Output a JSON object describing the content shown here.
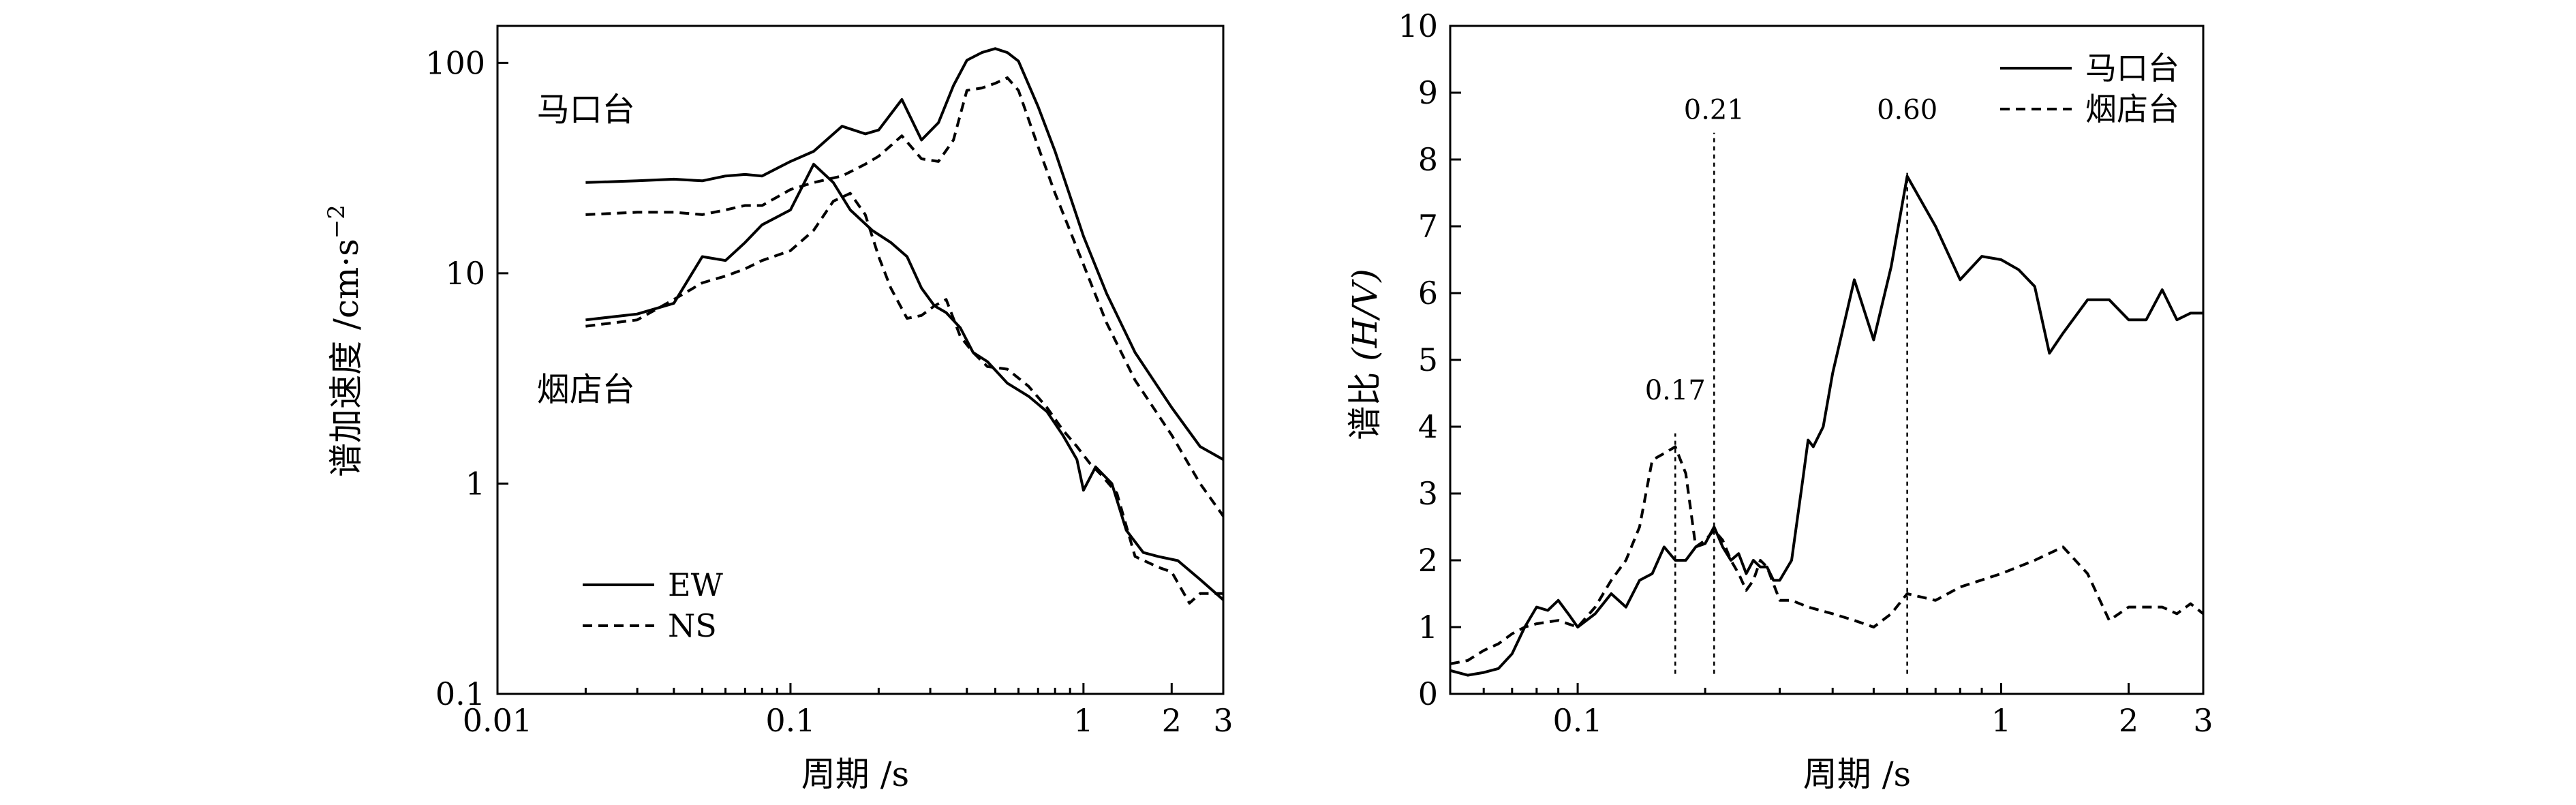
{
  "chart_data": [
    {
      "type": "line",
      "xscale": "log",
      "yscale": "log",
      "xlim": [
        0.01,
        3
      ],
      "ylim": [
        0.1,
        150
      ],
      "xlabel": "周期 /s",
      "ylabel_main": "谱加速度 /cm·s",
      "ylabel_sup": "−2",
      "xticks": [
        0.01,
        0.1,
        1,
        2,
        3
      ],
      "xtick_labels": [
        "0.01",
        "0.1",
        "1",
        "2",
        "3"
      ],
      "yticks": [
        0.1,
        1,
        10,
        100
      ],
      "ytick_labels": [
        "0.1",
        "1",
        "10",
        "100"
      ],
      "station_labels": [
        {
          "text": "马口台",
          "x": 0.011,
          "y": 60
        },
        {
          "text": "烟店台",
          "x": 0.011,
          "y": 2.8
        }
      ],
      "legend": [
        {
          "label": "EW",
          "style": "solid"
        },
        {
          "label": "NS",
          "style": "dashed"
        }
      ],
      "series": [
        {
          "name": "马口台 EW",
          "component": "EW",
          "x": [
            0.02,
            0.03,
            0.04,
            0.05,
            0.06,
            0.07,
            0.08,
            0.1,
            0.12,
            0.15,
            0.18,
            0.2,
            0.24,
            0.28,
            0.32,
            0.36,
            0.4,
            0.45,
            0.5,
            0.55,
            0.6,
            0.7,
            0.8,
            1.0,
            1.2,
            1.5,
            2.0,
            2.5,
            3.0
          ],
          "y": [
            27,
            27.5,
            28,
            27.5,
            29,
            29.5,
            29,
            34,
            38,
            50,
            46,
            48,
            67,
            43,
            52,
            78,
            103,
            112,
            117,
            112,
            102,
            62,
            38,
            15,
            8,
            4.2,
            2.3,
            1.5,
            1.3
          ]
        },
        {
          "name": "马口台 NS",
          "component": "NS",
          "x": [
            0.02,
            0.03,
            0.04,
            0.05,
            0.06,
            0.07,
            0.08,
            0.1,
            0.12,
            0.15,
            0.18,
            0.2,
            0.24,
            0.28,
            0.32,
            0.36,
            0.4,
            0.45,
            0.5,
            0.55,
            0.6,
            0.7,
            0.8,
            1.0,
            1.2,
            1.5,
            2.0,
            2.5,
            3.0
          ],
          "y": [
            19,
            19.5,
            19.5,
            19,
            20,
            21,
            21,
            25,
            27,
            29,
            33,
            36,
            45,
            35,
            34,
            43,
            74,
            76,
            80,
            85,
            74,
            40,
            24,
            11,
            5.8,
            3.1,
            1.7,
            1.0,
            0.7
          ]
        },
        {
          "name": "烟店台 EW",
          "component": "EW",
          "x": [
            0.02,
            0.03,
            0.04,
            0.05,
            0.06,
            0.07,
            0.08,
            0.1,
            0.12,
            0.14,
            0.16,
            0.19,
            0.22,
            0.25,
            0.28,
            0.31,
            0.34,
            0.38,
            0.42,
            0.47,
            0.55,
            0.65,
            0.75,
            0.85,
            0.95,
            1.0,
            1.1,
            1.25,
            1.4,
            1.6,
            1.8,
            2.1,
            2.5,
            3.0
          ],
          "y": [
            6,
            6.4,
            7.2,
            12,
            11.5,
            14,
            17,
            20,
            33,
            27,
            20,
            16,
            14,
            12,
            8.5,
            7,
            6.5,
            5.5,
            4.2,
            3.8,
            3.0,
            2.6,
            2.2,
            1.7,
            1.3,
            0.93,
            1.2,
            1.0,
            0.6,
            0.47,
            0.45,
            0.43,
            0.35,
            0.28
          ]
        },
        {
          "name": "烟店台 NS",
          "component": "NS",
          "x": [
            0.02,
            0.03,
            0.04,
            0.05,
            0.06,
            0.07,
            0.08,
            0.1,
            0.12,
            0.14,
            0.16,
            0.18,
            0.2,
            0.22,
            0.25,
            0.28,
            0.31,
            0.34,
            0.38,
            0.42,
            0.47,
            0.55,
            0.65,
            0.75,
            0.85,
            0.95,
            1.05,
            1.15,
            1.3,
            1.5,
            1.8,
            2.0,
            2.3,
            2.5,
            3.0
          ],
          "y": [
            5.6,
            6.0,
            7.5,
            9.0,
            9.7,
            10.5,
            11.5,
            12.8,
            16,
            22,
            24,
            19,
            12,
            8.5,
            6.1,
            6.3,
            7.0,
            7.5,
            5.0,
            4.2,
            3.6,
            3.5,
            2.9,
            2.3,
            1.8,
            1.5,
            1.25,
            1.1,
            0.9,
            0.45,
            0.4,
            0.38,
            0.27,
            0.3,
            0.3
          ]
        }
      ]
    },
    {
      "type": "line",
      "xscale": "log",
      "yscale": "linear",
      "xlim": [
        0.05,
        3
      ],
      "ylim": [
        0,
        10
      ],
      "xlabel": "周期 /s",
      "ylabel_main": "谱比 ",
      "ylabel_italic": "(H/V)",
      "xticks": [
        0.1,
        1,
        2,
        3
      ],
      "xtick_labels": [
        "0.1",
        "1",
        "2",
        "3"
      ],
      "yticks": [
        0,
        1,
        2,
        3,
        4,
        5,
        6,
        7,
        8,
        9,
        10
      ],
      "ytick_labels": [
        "0",
        "1",
        "2",
        "3",
        "4",
        "5",
        "6",
        "7",
        "8",
        "9",
        "10"
      ],
      "legend": [
        {
          "label": "马口台",
          "style": "solid"
        },
        {
          "label": "烟店台",
          "style": "dashed"
        }
      ],
      "markers": [
        {
          "x": 0.17,
          "label": "0.17",
          "y_top": 3.9,
          "label_y": 4.55
        },
        {
          "x": 0.21,
          "label": "0.21",
          "y_top": 8.4,
          "label_y": 8.75
        },
        {
          "x": 0.6,
          "label": "0.60",
          "y_top": 7.8,
          "label_y": 8.75
        }
      ],
      "series": [
        {
          "name": "马口台",
          "x": [
            0.05,
            0.055,
            0.06,
            0.065,
            0.07,
            0.075,
            0.08,
            0.085,
            0.09,
            0.095,
            0.1,
            0.11,
            0.12,
            0.13,
            0.14,
            0.15,
            0.16,
            0.17,
            0.18,
            0.19,
            0.2,
            0.21,
            0.22,
            0.23,
            0.24,
            0.25,
            0.26,
            0.27,
            0.28,
            0.29,
            0.3,
            0.32,
            0.34,
            0.35,
            0.36,
            0.38,
            0.4,
            0.45,
            0.5,
            0.55,
            0.6,
            0.7,
            0.8,
            0.9,
            1.0,
            1.1,
            1.2,
            1.3,
            1.4,
            1.6,
            1.8,
            2.0,
            2.2,
            2.4,
            2.6,
            2.8,
            3.0
          ],
          "y": [
            0.35,
            0.28,
            0.32,
            0.38,
            0.6,
            1.0,
            1.3,
            1.25,
            1.4,
            1.2,
            1.0,
            1.2,
            1.5,
            1.3,
            1.7,
            1.8,
            2.2,
            2.0,
            2.0,
            2.2,
            2.25,
            2.5,
            2.2,
            2.0,
            2.1,
            1.8,
            2.0,
            1.9,
            1.9,
            1.7,
            1.7,
            2.0,
            3.2,
            3.8,
            3.7,
            4.0,
            4.8,
            6.2,
            5.3,
            6.4,
            7.75,
            7.0,
            6.2,
            6.55,
            6.5,
            6.35,
            6.1,
            5.1,
            5.4,
            5.9,
            5.9,
            5.6,
            5.6,
            6.05,
            5.6,
            5.7,
            5.7
          ]
        },
        {
          "name": "烟店台",
          "x": [
            0.05,
            0.055,
            0.06,
            0.065,
            0.07,
            0.075,
            0.08,
            0.09,
            0.1,
            0.11,
            0.12,
            0.13,
            0.14,
            0.15,
            0.16,
            0.17,
            0.18,
            0.19,
            0.2,
            0.21,
            0.22,
            0.23,
            0.24,
            0.25,
            0.26,
            0.27,
            0.28,
            0.3,
            0.32,
            0.35,
            0.4,
            0.45,
            0.5,
            0.55,
            0.6,
            0.7,
            0.8,
            1.0,
            1.2,
            1.4,
            1.6,
            1.8,
            2.0,
            2.2,
            2.4,
            2.6,
            2.8,
            3.0
          ],
          "y": [
            0.45,
            0.5,
            0.65,
            0.75,
            0.9,
            1.0,
            1.05,
            1.1,
            1.0,
            1.3,
            1.7,
            2.0,
            2.5,
            3.5,
            3.6,
            3.7,
            3.3,
            2.2,
            2.3,
            2.45,
            2.3,
            2.0,
            1.8,
            1.55,
            1.7,
            2.0,
            1.9,
            1.4,
            1.4,
            1.3,
            1.2,
            1.1,
            1.0,
            1.2,
            1.5,
            1.4,
            1.6,
            1.8,
            2.0,
            2.2,
            1.8,
            1.1,
            1.3,
            1.3,
            1.3,
            1.2,
            1.35,
            1.2
          ]
        }
      ]
    }
  ]
}
